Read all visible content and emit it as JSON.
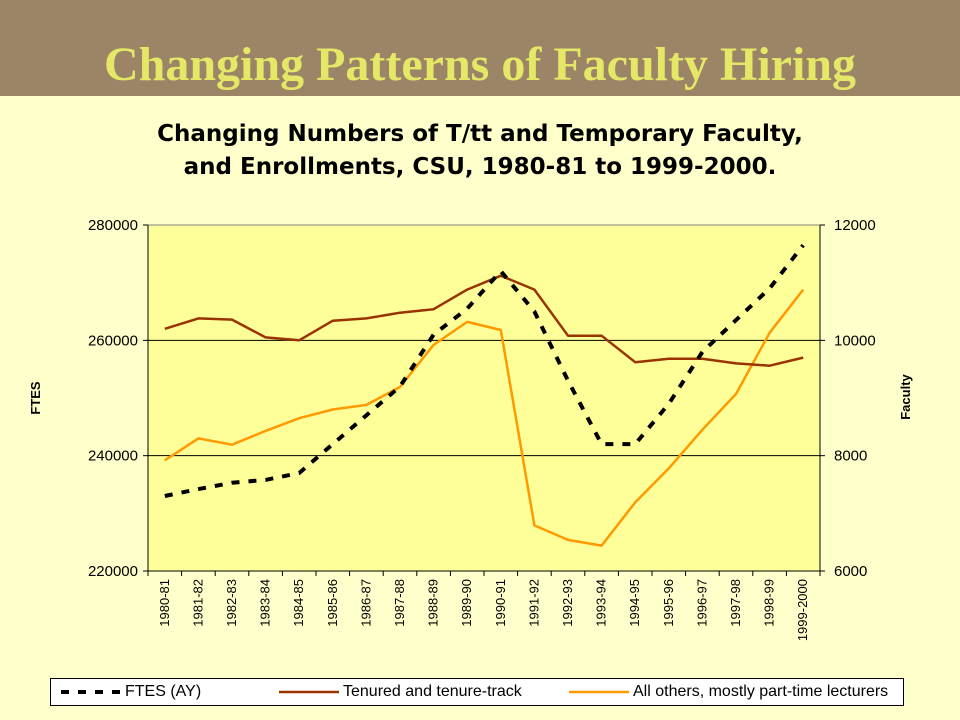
{
  "slide": {
    "title": "Changing Patterns of Faculty Hiring"
  },
  "colors": {
    "banner": "#9C8466",
    "title": "#E4E866",
    "background": "#FFFFCC",
    "plot_area": "#FFFF99",
    "ftes": "#000000",
    "tenured": "#993300",
    "others": "#FF9900"
  },
  "chart_data": {
    "type": "line",
    "title_lines": [
      "Changing Numbers of T/tt and Temporary Faculty,",
      "and Enrollments, CSU, 1980-81 to 1999-2000."
    ],
    "ylabel_left": "FTES",
    "ylabel_right": "Faculty",
    "ylim_left": [
      220000,
      280000
    ],
    "ylim_right": [
      6000,
      12000
    ],
    "yticks_left": [
      "220000",
      "240000",
      "260000",
      "280000"
    ],
    "yticks_right": [
      "6000",
      "8000",
      "10000",
      "12000"
    ],
    "grid": true,
    "legend_position": "bottom",
    "x": [
      "1980-81",
      "1981-82",
      "1982-83",
      "1983-84",
      "1984-85",
      "1985-86",
      "1986-87",
      "1987-88",
      "1988-89",
      "1989-90",
      "1990-91",
      "1991-92",
      "1992-93",
      "1993-94",
      "1994-95",
      "1995-96",
      "1996-97",
      "1997-98",
      "1998-99",
      "1999-2000"
    ],
    "series": [
      {
        "name": "FTES (AY)",
        "axis": "left",
        "style": "dashed",
        "values": [
          233000,
          234200,
          235300,
          235800,
          237000,
          242000,
          247000,
          252000,
          261000,
          265500,
          272000,
          265000,
          253000,
          242000,
          242000,
          249000,
          258000,
          263500,
          269000,
          276500
        ]
      },
      {
        "name": "Tenured and tenure-track",
        "axis": "right",
        "style": "solid",
        "values": [
          10200,
          10380,
          10360,
          10050,
          10000,
          10340,
          10380,
          10480,
          10540,
          10880,
          11120,
          10880,
          10080,
          10080,
          9620,
          9680,
          9680,
          9600,
          9560,
          9700
        ]
      },
      {
        "name": "All others, mostly part-time lecturers",
        "axis": "right",
        "style": "solid",
        "values": [
          7920,
          8300,
          8190,
          8430,
          8650,
          8800,
          8880,
          9190,
          9920,
          10320,
          10180,
          6790,
          6540,
          6440,
          7190,
          7780,
          8450,
          9070,
          10130,
          10880
        ]
      }
    ]
  }
}
